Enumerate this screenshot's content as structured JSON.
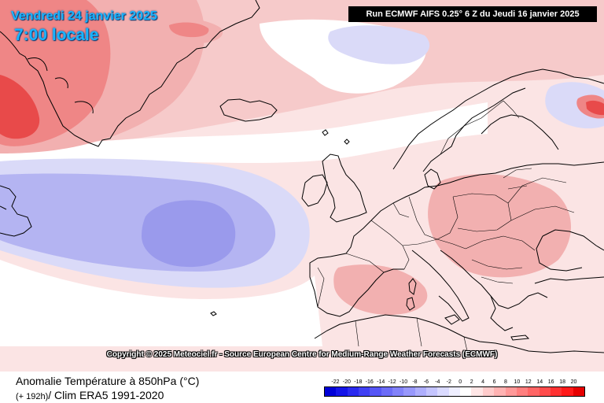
{
  "header": {
    "date": "Vendredi 24 janvier 2025",
    "time": "7:00 locale",
    "run": "Run ECMWF AIFS 0.25° 6 Z du Jeudi 16 janvier 2025"
  },
  "copyright": "Copyright © 2025 Meteociel.fr - Source European Centre for Medium-Range Weather Forecasts (ECMWF)",
  "legend": {
    "title": "Anomalie Température à 850hPa (°C)",
    "subtitle_small": "(+ 192h)",
    "subtitle": "/ Clim ERA5 1991-2020",
    "scale_labels": [
      "-22",
      "-20",
      "-18",
      "-16",
      "-14",
      "-12",
      "-10",
      "-8",
      "-6",
      "-4",
      "-2",
      "0",
      "2",
      "4",
      "6",
      "8",
      "10",
      "12",
      "14",
      "16",
      "18",
      "20"
    ],
    "scale_colors": [
      "#0000d8",
      "#1414e8",
      "#2a2af0",
      "#4040f4",
      "#5656f6",
      "#6c6cf8",
      "#8282fa",
      "#9898fc",
      "#aeaefd",
      "#c4c4fe",
      "#dadaff",
      "#eeeeff",
      "#ffffff",
      "#ffe6e6",
      "#ffcccc",
      "#ffb3b3",
      "#ff9999",
      "#ff7f7f",
      "#ff6666",
      "#ff4c4c",
      "#ff3232",
      "#ff1919",
      "#e60000"
    ]
  },
  "map": {
    "palette": {
      "sea_white": "#ffffff",
      "light_blue": "#dadaf8",
      "mid_blue": "#b4b4f2",
      "deep_blue": "#9a9aec",
      "light_pink": "#fbe4e4",
      "pink": "#f6caca",
      "salmon": "#f2b0b0",
      "red": "#ef8686",
      "deep_red": "#e84a4a",
      "coast": "#000000"
    },
    "regions": [
      "greenland",
      "iceland",
      "north-atlantic",
      "newfoundland",
      "europe",
      "scandinavia",
      "north-africa"
    ]
  }
}
